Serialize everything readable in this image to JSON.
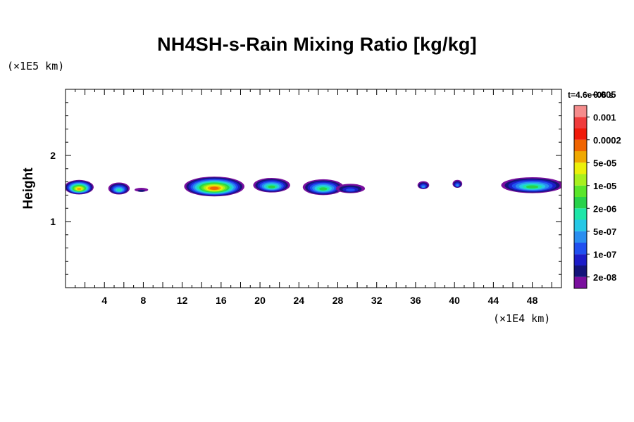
{
  "chart_data": {
    "type": "heatmap",
    "title": "NH4SH-s-Rain Mixing Ratio [kg/kg]",
    "ylabel": "Height",
    "y_unit": "(×1E5 km)",
    "x_unit": "(×1E4 km)",
    "time_label": "t=4.6e+06 s",
    "xlim": [
      0,
      51
    ],
    "ylim": [
      0,
      3
    ],
    "x_ticks": [
      4,
      8,
      12,
      16,
      20,
      24,
      28,
      32,
      36,
      40,
      44,
      48
    ],
    "y_ticks": [
      1,
      2
    ],
    "colorbar": {
      "colors": [
        "#7a0f9e",
        "#14147a",
        "#1c1cc8",
        "#2050f0",
        "#2a8ef0",
        "#26c8e6",
        "#1ee6a8",
        "#28d24a",
        "#5ae62a",
        "#a8f01e",
        "#ecf00a",
        "#f0a800",
        "#f06400",
        "#f01a0a",
        "#f03c3c",
        "#f58c8c"
      ],
      "labels": [
        "2e-08",
        "1e-07",
        "5e-07",
        "2e-06",
        "1e-05",
        "5e-05",
        "0.0002",
        "0.001",
        "0.005"
      ]
    },
    "blobs": [
      {
        "x": 1.4,
        "y": 1.52,
        "rx": 1.5,
        "ry": 0.11,
        "peak": 12
      },
      {
        "x": 5.5,
        "y": 1.5,
        "rx": 1.1,
        "ry": 0.09,
        "peak": 7
      },
      {
        "x": 7.8,
        "y": 1.48,
        "rx": 0.7,
        "ry": 0.03,
        "peak": 2
      },
      {
        "x": 15.3,
        "y": 1.53,
        "rx": 3.1,
        "ry": 0.15,
        "peak": 13
      },
      {
        "x": 21.2,
        "y": 1.55,
        "rx": 1.9,
        "ry": 0.11,
        "peak": 8
      },
      {
        "x": 26.5,
        "y": 1.52,
        "rx": 2.1,
        "ry": 0.12,
        "peak": 8
      },
      {
        "x": 29.3,
        "y": 1.5,
        "rx": 1.5,
        "ry": 0.07,
        "peak": 4
      },
      {
        "x": 36.8,
        "y": 1.55,
        "rx": 0.6,
        "ry": 0.06,
        "peak": 5
      },
      {
        "x": 40.3,
        "y": 1.57,
        "rx": 0.5,
        "ry": 0.06,
        "peak": 5
      },
      {
        "x": 48.0,
        "y": 1.55,
        "rx": 3.2,
        "ry": 0.12,
        "peak": 8
      }
    ]
  }
}
